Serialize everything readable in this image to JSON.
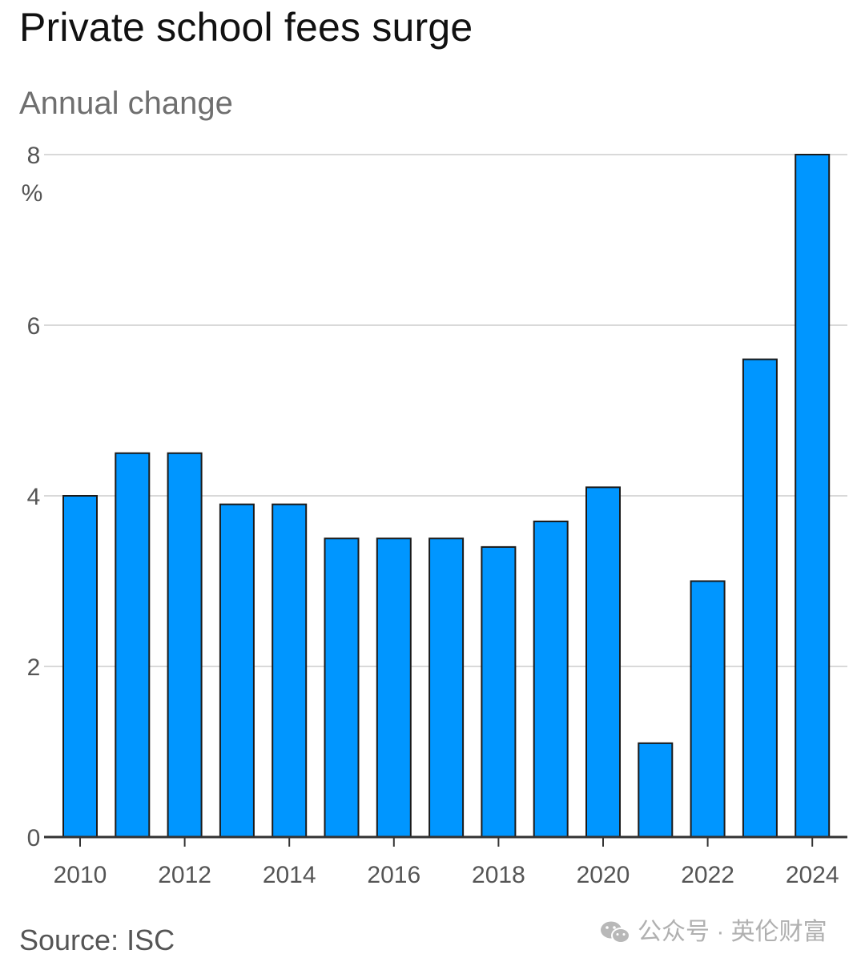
{
  "title": "Private school fees surge",
  "subtitle": "Annual change",
  "source": "Source: ISC",
  "watermark": "公众号 · 英伦财富",
  "colors": {
    "bar": "#0096ff",
    "bar_outline": "#1a1a1a",
    "grid": "#d9d9d9",
    "axis": "#333333"
  },
  "chart_data": {
    "type": "bar",
    "title": "Private school fees surge",
    "subtitle": "Annual change",
    "ylabel": "%",
    "ylim": [
      0,
      8
    ],
    "yticks": [
      0,
      2,
      4,
      6,
      8
    ],
    "grid": true,
    "categories": [
      "2010",
      "2011",
      "2012",
      "2013",
      "2014",
      "2015",
      "2016",
      "2017",
      "2018",
      "2019",
      "2020",
      "2021",
      "2022",
      "2023",
      "2024"
    ],
    "values": [
      4.0,
      4.5,
      4.5,
      3.9,
      3.9,
      3.5,
      3.5,
      3.5,
      3.4,
      3.7,
      4.1,
      1.1,
      3.0,
      5.6,
      8.0
    ],
    "xtick_labels": [
      "2010",
      "2012",
      "2014",
      "2016",
      "2018",
      "2020",
      "2022",
      "2024"
    ]
  }
}
